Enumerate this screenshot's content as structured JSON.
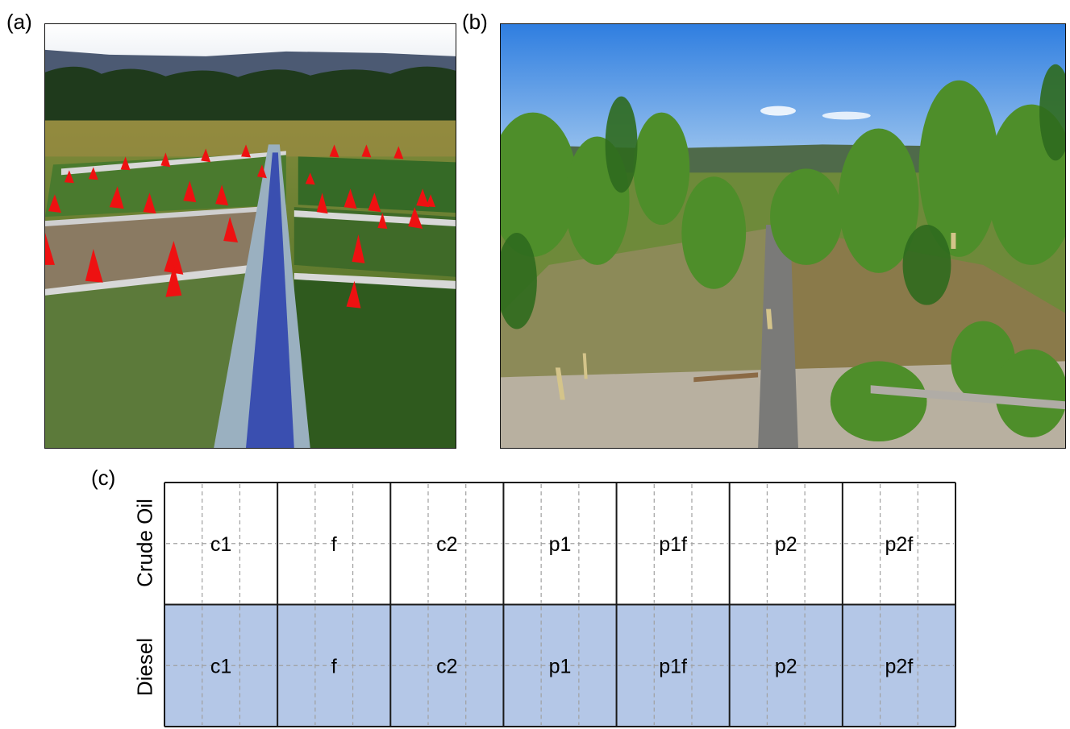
{
  "panels": {
    "a": "(a)",
    "b": "(b)",
    "c": "(c)"
  },
  "grid": {
    "rows": [
      {
        "label": "Crude Oil",
        "fill": "#ffffff",
        "cells": [
          "c1",
          "f",
          "c2",
          "p1",
          "p1f",
          "p2",
          "p2f"
        ]
      },
      {
        "label": "Diesel",
        "fill": "#b4c7e7",
        "cells": [
          "c1",
          "f",
          "c2",
          "p1",
          "p1f",
          "p2",
          "p2f"
        ]
      }
    ],
    "line_color": "#1a1a1a",
    "dash_color": "#a0a0a0"
  }
}
